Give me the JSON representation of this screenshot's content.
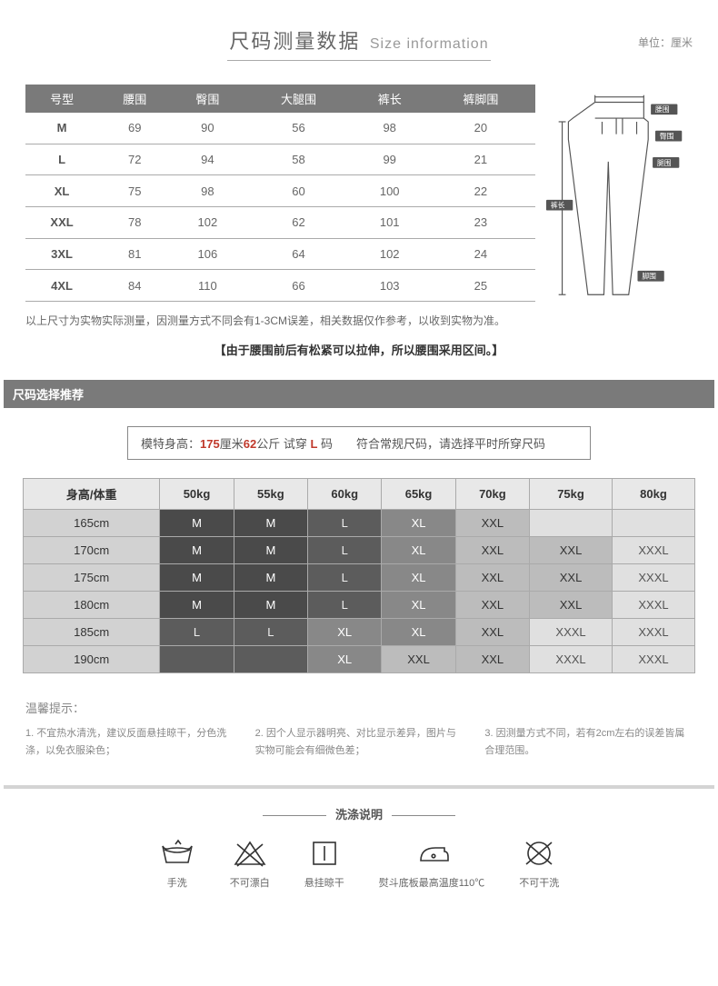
{
  "title": {
    "cn": "尺码测量数据",
    "en": "Size information"
  },
  "unit_label": "单位：厘米",
  "size_table": {
    "headers": [
      "号型",
      "腰围",
      "臀围",
      "大腿围",
      "裤长",
      "裤脚围"
    ],
    "rows": [
      [
        "M",
        "69",
        "90",
        "56",
        "98",
        "20"
      ],
      [
        "L",
        "72",
        "94",
        "58",
        "99",
        "21"
      ],
      [
        "XL",
        "75",
        "98",
        "60",
        "100",
        "22"
      ],
      [
        "XXL",
        "78",
        "102",
        "62",
        "101",
        "23"
      ],
      [
        "3XL",
        "81",
        "106",
        "64",
        "102",
        "24"
      ],
      [
        "4XL",
        "84",
        "110",
        "66",
        "103",
        "25"
      ]
    ]
  },
  "diagram_labels": {
    "waist": "腰围",
    "hip": "臀围",
    "thigh": "腿围",
    "length": "裤长",
    "hem": "脚围"
  },
  "note1": "以上尺寸为实物实际测量，因测量方式不同会有1-3CM误差，相关数据仅作参考，以收到实物为准。",
  "note2": "【由于腰围前后有松紧可以拉伸，所以腰围采用区间。】",
  "reco_title": "尺码选择推荐",
  "model": {
    "prefix": "模特身高：",
    "height": "175",
    "h_unit": "厘米",
    "weight": "62",
    "w_unit": "公斤 试穿 ",
    "size": "L",
    "s_unit": " 码",
    "rest": "　　符合常规尺码，请选择平时所穿尺码"
  },
  "grid": {
    "corner": "身高/体重",
    "weights": [
      "50kg",
      "55kg",
      "60kg",
      "65kg",
      "70kg",
      "75kg",
      "80kg"
    ],
    "heights": [
      "165cm",
      "170cm",
      "175cm",
      "180cm",
      "185cm",
      "190cm"
    ],
    "cells": [
      [
        [
          "M",
          "dark"
        ],
        [
          "M",
          "dark"
        ],
        [
          "L",
          "dim"
        ],
        [
          "XL",
          "mid"
        ],
        [
          "XXL",
          "lt"
        ],
        [
          "",
          "pale"
        ],
        [
          "",
          "pale"
        ]
      ],
      [
        [
          "M",
          "dark"
        ],
        [
          "M",
          "dark"
        ],
        [
          "L",
          "dim"
        ],
        [
          "XL",
          "mid"
        ],
        [
          "XXL",
          "lt"
        ],
        [
          "XXL",
          "lt"
        ],
        [
          "XXXL",
          "pale"
        ]
      ],
      [
        [
          "M",
          "dark"
        ],
        [
          "M",
          "dark"
        ],
        [
          "L",
          "dim"
        ],
        [
          "XL",
          "mid"
        ],
        [
          "XXL",
          "lt"
        ],
        [
          "XXL",
          "lt"
        ],
        [
          "XXXL",
          "pale"
        ]
      ],
      [
        [
          "M",
          "dark"
        ],
        [
          "M",
          "dark"
        ],
        [
          "L",
          "dim"
        ],
        [
          "XL",
          "mid"
        ],
        [
          "XXL",
          "lt"
        ],
        [
          "XXL",
          "lt"
        ],
        [
          "XXXL",
          "pale"
        ]
      ],
      [
        [
          "L",
          "dim"
        ],
        [
          "L",
          "dim"
        ],
        [
          "XL",
          "mid"
        ],
        [
          "XL",
          "mid"
        ],
        [
          "XXL",
          "lt"
        ],
        [
          "XXXL",
          "pale"
        ],
        [
          "XXXL",
          "pale"
        ]
      ],
      [
        [
          "",
          "dim"
        ],
        [
          "",
          "dim"
        ],
        [
          "XL",
          "mid"
        ],
        [
          "XXL",
          "lt"
        ],
        [
          "XXL",
          "lt"
        ],
        [
          "XXXL",
          "pale"
        ],
        [
          "XXXL",
          "pale"
        ]
      ]
    ]
  },
  "tips_title": "温馨提示：",
  "tips": [
    "1. 不宜热水清洗，建议反面悬挂晾干，分色洗涤，以免衣服染色；",
    "2. 因个人显示器明亮、对比显示差异，图片与实物可能会有细微色差；",
    "3. 因测量方式不同，若有2cm左右的误差皆属合理范围。"
  ],
  "wash_title": "洗涤说明",
  "wash_items": [
    "手洗",
    "不可漂白",
    "悬挂晾干",
    "熨斗底板最高温度110℃",
    "不可干洗"
  ]
}
